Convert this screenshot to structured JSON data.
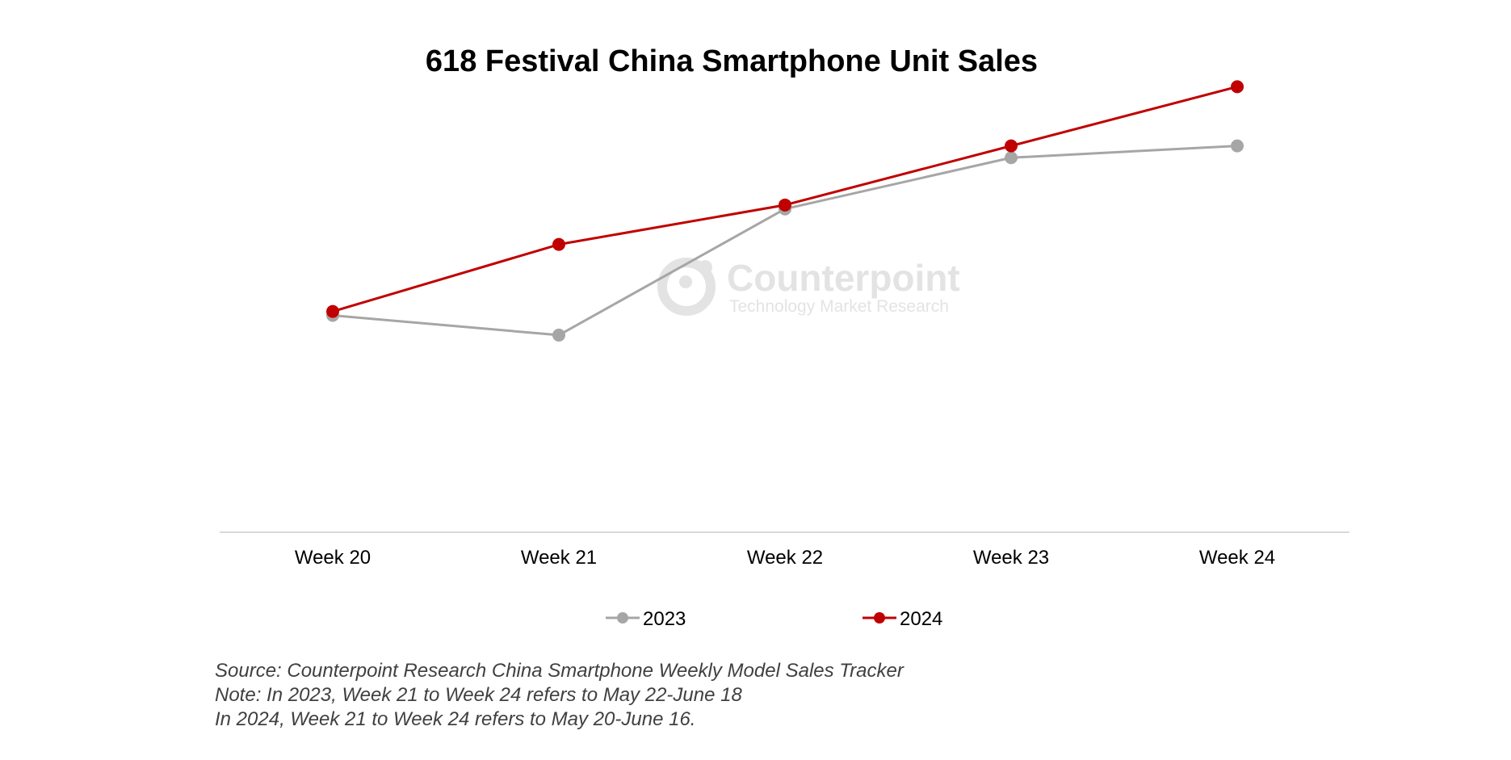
{
  "watermark": {
    "brand": "Counterpoint",
    "tagline": "Technology Market Research"
  },
  "chart_data": {
    "type": "line",
    "title": "618 Festival China Smartphone Unit Sales",
    "xlabel": "",
    "ylabel": "",
    "categories": [
      "Week 20",
      "Week 21",
      "Week 22",
      "Week 23",
      "Week 24"
    ],
    "series": [
      {
        "name": "2023",
        "color": "#a6a6a6",
        "values": [
          55,
          50,
          82,
          95,
          98
        ]
      },
      {
        "name": "2024",
        "color": "#c00000",
        "values": [
          56,
          73,
          83,
          98,
          113
        ]
      }
    ],
    "ylim": [
      0,
      135
    ],
    "grid": false,
    "legend_position": "bottom",
    "axis_line_color": "#d9d9d9"
  },
  "notes": [
    "Source: Counterpoint Research China Smartphone Weekly Model Sales Tracker",
    "Note: In 2023, Week 21 to Week 24 refers to May 22-June 18",
    "In 2024, Week 21 to Week 24 refers to May 20-June 16."
  ]
}
